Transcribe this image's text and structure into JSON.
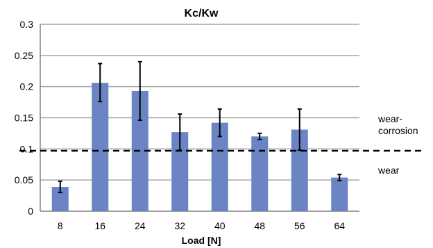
{
  "chart_data": {
    "type": "bar",
    "title": "Kc/Kw",
    "xlabel": "Load [N]",
    "ylabel": "",
    "categories": [
      "8",
      "16",
      "24",
      "32",
      "40",
      "48",
      "56",
      "64"
    ],
    "values": [
      0.039,
      0.206,
      0.193,
      0.127,
      0.142,
      0.12,
      0.131,
      0.054
    ],
    "error_low": [
      0.03,
      0.176,
      0.146,
      0.098,
      0.12,
      0.115,
      0.098,
      0.049
    ],
    "error_high": [
      0.048,
      0.237,
      0.24,
      0.156,
      0.164,
      0.125,
      0.164,
      0.059
    ],
    "ylim": [
      0,
      0.3
    ],
    "yticks": [
      "0",
      "0.05",
      "0.1",
      "0.15",
      "0.2",
      "0.25",
      "0.3"
    ],
    "ytick_values": [
      0,
      0.05,
      0.1,
      0.15,
      0.2,
      0.25,
      0.3
    ],
    "grid": true,
    "threshold": {
      "value": 0.097,
      "style": "dashed",
      "label_above": [
        "wear-",
        "corrosion"
      ],
      "label_below": "wear"
    },
    "colors": {
      "bar": "#6a84c4",
      "grid": "#a6a6a6",
      "error": "#000000",
      "threshold": "#000000"
    }
  }
}
